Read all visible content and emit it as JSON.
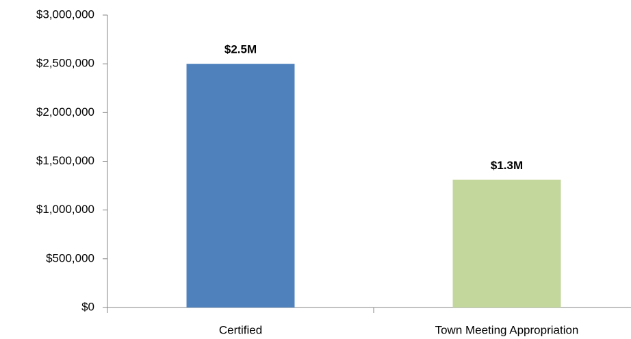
{
  "chart_data": {
    "type": "bar",
    "categories": [
      "Certified",
      "Town Meeting Appropriation"
    ],
    "values": [
      2500000,
      1310000
    ],
    "value_labels": [
      "$2.5M",
      "$1.3M"
    ],
    "colors": [
      "#4f81bd",
      "#c3d69b"
    ],
    "ylim": [
      0,
      3000000
    ],
    "yticks": [
      {
        "value": 0,
        "label": "$0"
      },
      {
        "value": 500000,
        "label": "$500,000"
      },
      {
        "value": 1000000,
        "label": "$1,000,000"
      },
      {
        "value": 1500000,
        "label": "$1,500,000"
      },
      {
        "value": 2000000,
        "label": "$2,000,000"
      },
      {
        "value": 2500000,
        "label": "$2,500,000"
      },
      {
        "value": 3000000,
        "label": "$3,000,000"
      }
    ],
    "grid": false
  }
}
